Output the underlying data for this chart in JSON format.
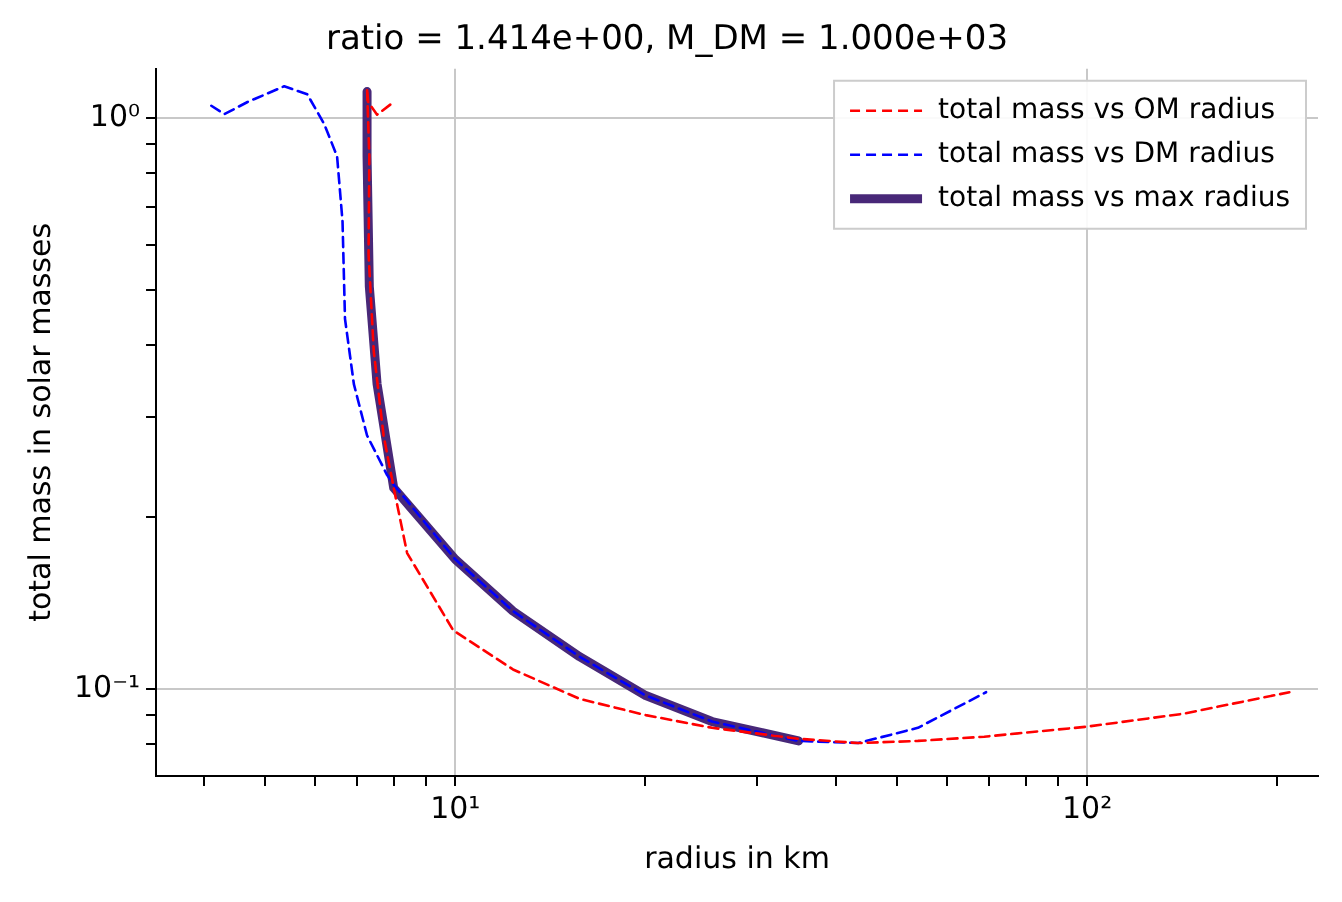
{
  "chart_data": {
    "type": "line",
    "title": "ratio = 1.414e+00, M_DM = 1.000e+03",
    "xlabel": "radius in km",
    "ylabel": "total mass in solar masses",
    "log": "xy",
    "grid": true,
    "legend": "top right",
    "marker": "none",
    "xlim": [
      3.36,
      232
    ],
    "ylim": [
      0.0704,
      1.22
    ],
    "xticks": [
      {
        "value": 4,
        "label": null
      },
      {
        "value": 5,
        "label": null
      },
      {
        "value": 6,
        "label": null
      },
      {
        "value": 7,
        "label": null
      },
      {
        "value": 8,
        "label": null
      },
      {
        "value": 9,
        "label": null
      },
      {
        "value": 10,
        "label": "10¹"
      },
      {
        "value": 20,
        "label": null
      },
      {
        "value": 30,
        "label": null
      },
      {
        "value": 40,
        "label": null
      },
      {
        "value": 50,
        "label": null
      },
      {
        "value": 60,
        "label": null
      },
      {
        "value": 70,
        "label": null
      },
      {
        "value": 80,
        "label": null
      },
      {
        "value": 90,
        "label": null
      },
      {
        "value": 100,
        "label": "10²"
      },
      {
        "value": 200,
        "label": null
      }
    ],
    "yticks": [
      {
        "value": 0.08,
        "label": null
      },
      {
        "value": 0.09,
        "label": null
      },
      {
        "value": 0.1,
        "label": "10⁻¹"
      },
      {
        "value": 0.2,
        "label": null
      },
      {
        "value": 0.3,
        "label": null
      },
      {
        "value": 0.4,
        "label": null
      },
      {
        "value": 0.5,
        "label": null
      },
      {
        "value": 0.6,
        "label": null
      },
      {
        "value": 0.7,
        "label": null
      },
      {
        "value": 0.8,
        "label": null
      },
      {
        "value": 0.9,
        "label": null
      },
      {
        "value": 1,
        "label": "10⁰"
      }
    ],
    "series": [
      {
        "name": "total mass vs OM radius",
        "color": "#ff0000",
        "line_style": "dashed",
        "x": [
          7.89,
          7.52,
          7.28,
          7.25,
          7.31,
          7.29,
          7.43,
          7.7,
          7.99,
          8.39,
          9.93,
          12.34,
          15.73,
          20.02,
          25.49,
          34.94,
          43.42,
          53.98,
          68.74,
          100,
          142,
          209
        ],
        "values": [
          1.056,
          1.014,
          1.067,
          1.128,
          0.857,
          0.578,
          0.39,
          0.278,
          0.225,
          0.173,
          0.1266,
          0.1082,
          0.0961,
          0.09,
          0.0855,
          0.0818,
          0.0804,
          0.0811,
          0.0825,
          0.0859,
          0.0905,
          0.0987
        ]
      },
      {
        "name": "total mass vs DM radius",
        "color": "#0000ff",
        "line_style": "dashed",
        "x": [
          4.11,
          4.31,
          4.69,
          5.36,
          5.83,
          6.2,
          6.5,
          6.63,
          6.69,
          6.91,
          7.25,
          7.8,
          7.99,
          10,
          12.34,
          15.73,
          20.02,
          25.49,
          34.94,
          43.42,
          53.98,
          69.2
        ],
        "values": [
          1.051,
          1.016,
          1.067,
          1.137,
          1.101,
          0.977,
          0.857,
          0.659,
          0.445,
          0.342,
          0.278,
          0.237,
          0.228,
          0.1687,
          0.1369,
          0.1139,
          0.0974,
          0.0877,
          0.0811,
          0.0804,
          0.0855,
          0.0987
        ]
      },
      {
        "name": "total mass vs max radius",
        "color": "#482878",
        "line_style": "solid",
        "x": [
          7.25,
          7.25,
          7.31,
          7.52,
          7.99,
          10,
          12.34,
          15.73,
          20.02,
          25.49,
          34.94
        ],
        "values": [
          1.113,
          0.857,
          0.507,
          0.342,
          0.225,
          0.1687,
          0.1369,
          0.1139,
          0.0974,
          0.0877,
          0.0811
        ]
      }
    ]
  }
}
